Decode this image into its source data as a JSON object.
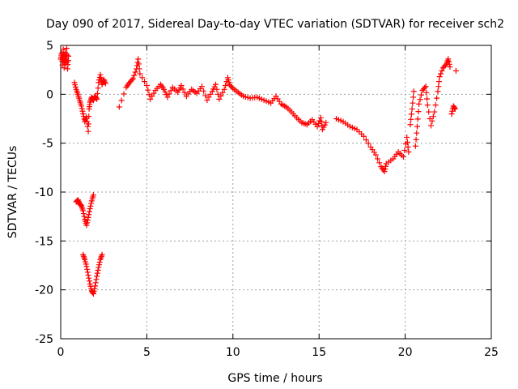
{
  "chart_data": {
    "type": "scatter",
    "title": "Day 090 of 2017, Sidereal Day-to-day VTEC variation (SDTVAR) for receiver sch2",
    "xlabel": "GPS time / hours",
    "ylabel": "SDTVAR / TECUs",
    "xlim": [
      0,
      25
    ],
    "ylim": [
      -25,
      5
    ],
    "xticks": [
      "0",
      "5",
      "10",
      "15",
      "20",
      "25"
    ],
    "yticks": [
      "5",
      "0",
      "-5",
      "-10",
      "-15",
      "-20",
      "-25"
    ],
    "grid": true,
    "marker": "plus",
    "series_color": "#ff0000",
    "series": [
      {
        "name": "SDTVAR",
        "points": [
          [
            0.0,
            3.6
          ],
          [
            0.05,
            4.2
          ],
          [
            0.1,
            3.0
          ],
          [
            0.15,
            4.6
          ],
          [
            0.2,
            2.7
          ],
          [
            0.25,
            4.3
          ],
          [
            0.3,
            3.1
          ],
          [
            0.35,
            4.7
          ],
          [
            0.4,
            2.6
          ],
          [
            0.45,
            3.9
          ],
          [
            0.8,
            1.2
          ],
          [
            0.9,
            0.5
          ],
          [
            1.0,
            0.0
          ],
          [
            1.1,
            -0.6
          ],
          [
            1.2,
            -1.2
          ],
          [
            1.3,
            -2.0
          ],
          [
            1.4,
            -2.8
          ],
          [
            1.5,
            -2.3
          ],
          [
            1.6,
            -3.8
          ],
          [
            1.65,
            -1.5
          ],
          [
            1.7,
            -0.8
          ],
          [
            1.8,
            -0.3
          ],
          [
            1.9,
            -0.6
          ],
          [
            2.0,
            -0.2
          ],
          [
            2.1,
            -0.5
          ],
          [
            2.2,
            1.2
          ],
          [
            2.3,
            2.0
          ],
          [
            2.4,
            1.0
          ],
          [
            2.5,
            1.5
          ],
          [
            2.6,
            1.1
          ],
          [
            3.4,
            -1.3
          ],
          [
            3.8,
            0.7
          ],
          [
            4.0,
            1.2
          ],
          [
            4.2,
            1.6
          ],
          [
            4.4,
            2.6
          ],
          [
            4.5,
            3.6
          ],
          [
            4.6,
            2.1
          ],
          [
            5.0,
            0.9
          ],
          [
            5.2,
            -0.5
          ],
          [
            5.5,
            0.4
          ],
          [
            5.8,
            1.0
          ],
          [
            6.0,
            0.5
          ],
          [
            6.2,
            -0.3
          ],
          [
            6.5,
            0.7
          ],
          [
            6.8,
            0.2
          ],
          [
            7.0,
            0.9
          ],
          [
            7.3,
            -0.2
          ],
          [
            7.6,
            0.5
          ],
          [
            7.9,
            0.1
          ],
          [
            8.2,
            0.8
          ],
          [
            8.5,
            -0.6
          ],
          [
            8.8,
            0.3
          ],
          [
            9.0,
            1.0
          ],
          [
            9.2,
            -0.5
          ],
          [
            9.5,
            0.5
          ],
          [
            9.7,
            1.7
          ],
          [
            9.8,
            1.0
          ],
          [
            10.0,
            0.6
          ],
          [
            10.3,
            0.2
          ],
          [
            10.6,
            -0.2
          ],
          [
            11.0,
            -0.4
          ],
          [
            11.4,
            -0.3
          ],
          [
            11.8,
            -0.6
          ],
          [
            12.2,
            -0.9
          ],
          [
            12.5,
            -0.2
          ],
          [
            12.8,
            -1.0
          ],
          [
            13.1,
            -1.3
          ],
          [
            13.4,
            -1.8
          ],
          [
            13.7,
            -2.4
          ],
          [
            14.0,
            -2.9
          ],
          [
            14.3,
            -3.1
          ],
          [
            14.6,
            -2.6
          ],
          [
            14.9,
            -3.3
          ],
          [
            15.1,
            -2.4
          ],
          [
            15.2,
            -3.6
          ],
          [
            15.4,
            -2.9
          ],
          [
            16.0,
            -2.5
          ],
          [
            16.4,
            -2.8
          ],
          [
            16.8,
            -3.3
          ],
          [
            17.2,
            -3.6
          ],
          [
            17.6,
            -4.3
          ],
          [
            18.0,
            -5.4
          ],
          [
            18.3,
            -6.2
          ],
          [
            18.6,
            -7.4
          ],
          [
            18.8,
            -7.9
          ],
          [
            18.9,
            -7.1
          ],
          [
            19.3,
            -6.6
          ],
          [
            19.6,
            -5.9
          ],
          [
            19.9,
            -6.4
          ],
          [
            20.1,
            -4.4
          ],
          [
            20.2,
            -5.9
          ],
          [
            20.3,
            -3.1
          ],
          [
            20.4,
            -1.5
          ],
          [
            20.5,
            0.3
          ],
          [
            20.6,
            -5.3
          ],
          [
            20.7,
            -3.3
          ],
          [
            20.8,
            -1.0
          ],
          [
            21.0,
            0.4
          ],
          [
            21.2,
            0.8
          ],
          [
            21.3,
            -1.1
          ],
          [
            21.5,
            -3.2
          ],
          [
            21.7,
            -1.8
          ],
          [
            21.9,
            0.3
          ],
          [
            22.0,
            1.8
          ],
          [
            22.2,
            2.7
          ],
          [
            22.4,
            3.1
          ],
          [
            22.5,
            3.6
          ],
          [
            22.6,
            2.8
          ],
          [
            22.7,
            -2.0
          ],
          [
            22.8,
            -1.2
          ],
          [
            22.9,
            -1.5
          ],
          [
            22.95,
            2.4
          ],
          [
            0.9,
            -11.0
          ],
          [
            1.0,
            -10.8
          ],
          [
            1.1,
            -11.2
          ],
          [
            1.2,
            -11.4
          ],
          [
            1.3,
            -11.9
          ],
          [
            1.4,
            -12.8
          ],
          [
            1.5,
            -13.4
          ],
          [
            1.6,
            -12.6
          ],
          [
            1.7,
            -11.7
          ],
          [
            1.8,
            -10.9
          ],
          [
            1.9,
            -10.3
          ],
          [
            1.3,
            -16.4
          ],
          [
            1.4,
            -16.9
          ],
          [
            1.5,
            -17.6
          ],
          [
            1.6,
            -18.5
          ],
          [
            1.7,
            -19.4
          ],
          [
            1.8,
            -20.1
          ],
          [
            1.9,
            -20.4
          ],
          [
            2.0,
            -19.6
          ],
          [
            2.1,
            -18.6
          ],
          [
            2.2,
            -17.7
          ],
          [
            2.3,
            -16.9
          ],
          [
            2.4,
            -16.4
          ]
        ]
      }
    ]
  }
}
